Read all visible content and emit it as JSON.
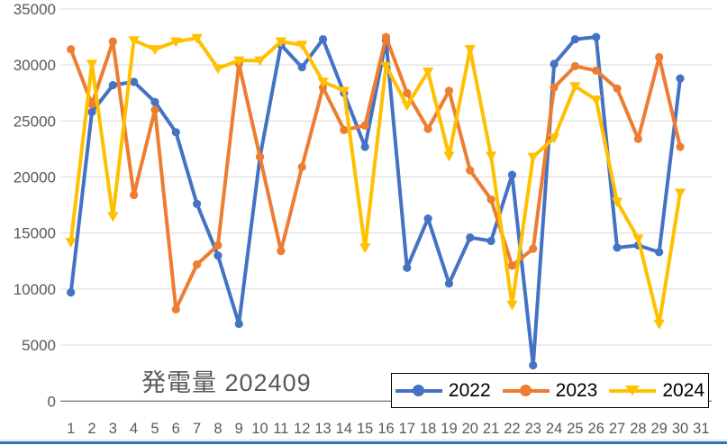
{
  "chart_data": {
    "type": "line",
    "title": "発電量 202409",
    "categories": [
      "1",
      "2",
      "3",
      "4",
      "5",
      "6",
      "7",
      "8",
      "9",
      "10",
      "11",
      "12",
      "13",
      "14",
      "15",
      "16",
      "17",
      "18",
      "19",
      "20",
      "21",
      "22",
      "23",
      "24",
      "25",
      "26",
      "27",
      "28",
      "29",
      "30",
      "31"
    ],
    "xlabel": "",
    "ylabel": "",
    "ylim": [
      0,
      35000
    ],
    "y_tick_step": 5000,
    "y_tick_labels": [
      "0",
      "5000",
      "10000",
      "15000",
      "20000",
      "25000",
      "30000",
      "35000"
    ],
    "grid": true,
    "legend_position": "bottom-right-overlay",
    "series": [
      {
        "name": "2022",
        "color": "#4472C4",
        "marker": "circle",
        "values": [
          9700,
          25800,
          28200,
          28500,
          26700,
          24000,
          17600,
          13000,
          6900,
          21800,
          31800,
          29800,
          32300,
          27500,
          22700,
          32200,
          11900,
          16300,
          10500,
          14600,
          14300,
          20200,
          3200,
          30100,
          32300,
          32500,
          13700,
          13900,
          13300,
          28800,
          null
        ]
      },
      {
        "name": "2023",
        "color": "#ED7D31",
        "marker": "circle",
        "values": [
          31400,
          26500,
          32100,
          18400,
          26000,
          8200,
          12200,
          13900,
          30100,
          21800,
          13400,
          20900,
          28000,
          24200,
          24600,
          32500,
          27500,
          24300,
          27700,
          20600,
          18000,
          12100,
          13600,
          28000,
          29900,
          29500,
          27900,
          23400,
          30700,
          22700,
          null
        ]
      },
      {
        "name": "2024",
        "color": "#FFC000",
        "marker": "triangle-down",
        "values": [
          14200,
          30100,
          16500,
          32200,
          31400,
          32100,
          32400,
          29700,
          30400,
          30400,
          32100,
          31800,
          28500,
          27700,
          13700,
          29900,
          26400,
          29400,
          21900,
          31400,
          21900,
          8600,
          21800,
          23500,
          28100,
          26900,
          17800,
          14500,
          6900,
          18600,
          null
        ]
      }
    ]
  },
  "style": {
    "gridline_color": "#D9D9D9",
    "axis_line_color": "#808080",
    "tick_label_color": "#595959",
    "title_color": "#595959",
    "legend_border_color": "#000000",
    "window_edge_blue": "#2E75B6"
  }
}
